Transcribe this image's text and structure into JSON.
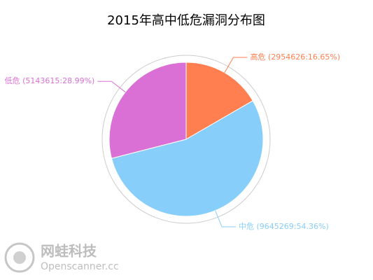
{
  "chart_data": {
    "type": "pie",
    "title": "2015年高中低危漏洞分布图",
    "values": [
      2954626,
      9645269,
      5143615
    ],
    "value_labels": [
      "高危 (2954626:16.65%)",
      "中危 (9645269:54.36%)",
      "低危 (5143615:28.99%)"
    ],
    "colors": [
      "#ff7f50",
      "#87cefa",
      "#da70d6"
    ]
  },
  "watermark": {
    "name": "网蛙科技",
    "site": "Openscanner.cc"
  }
}
